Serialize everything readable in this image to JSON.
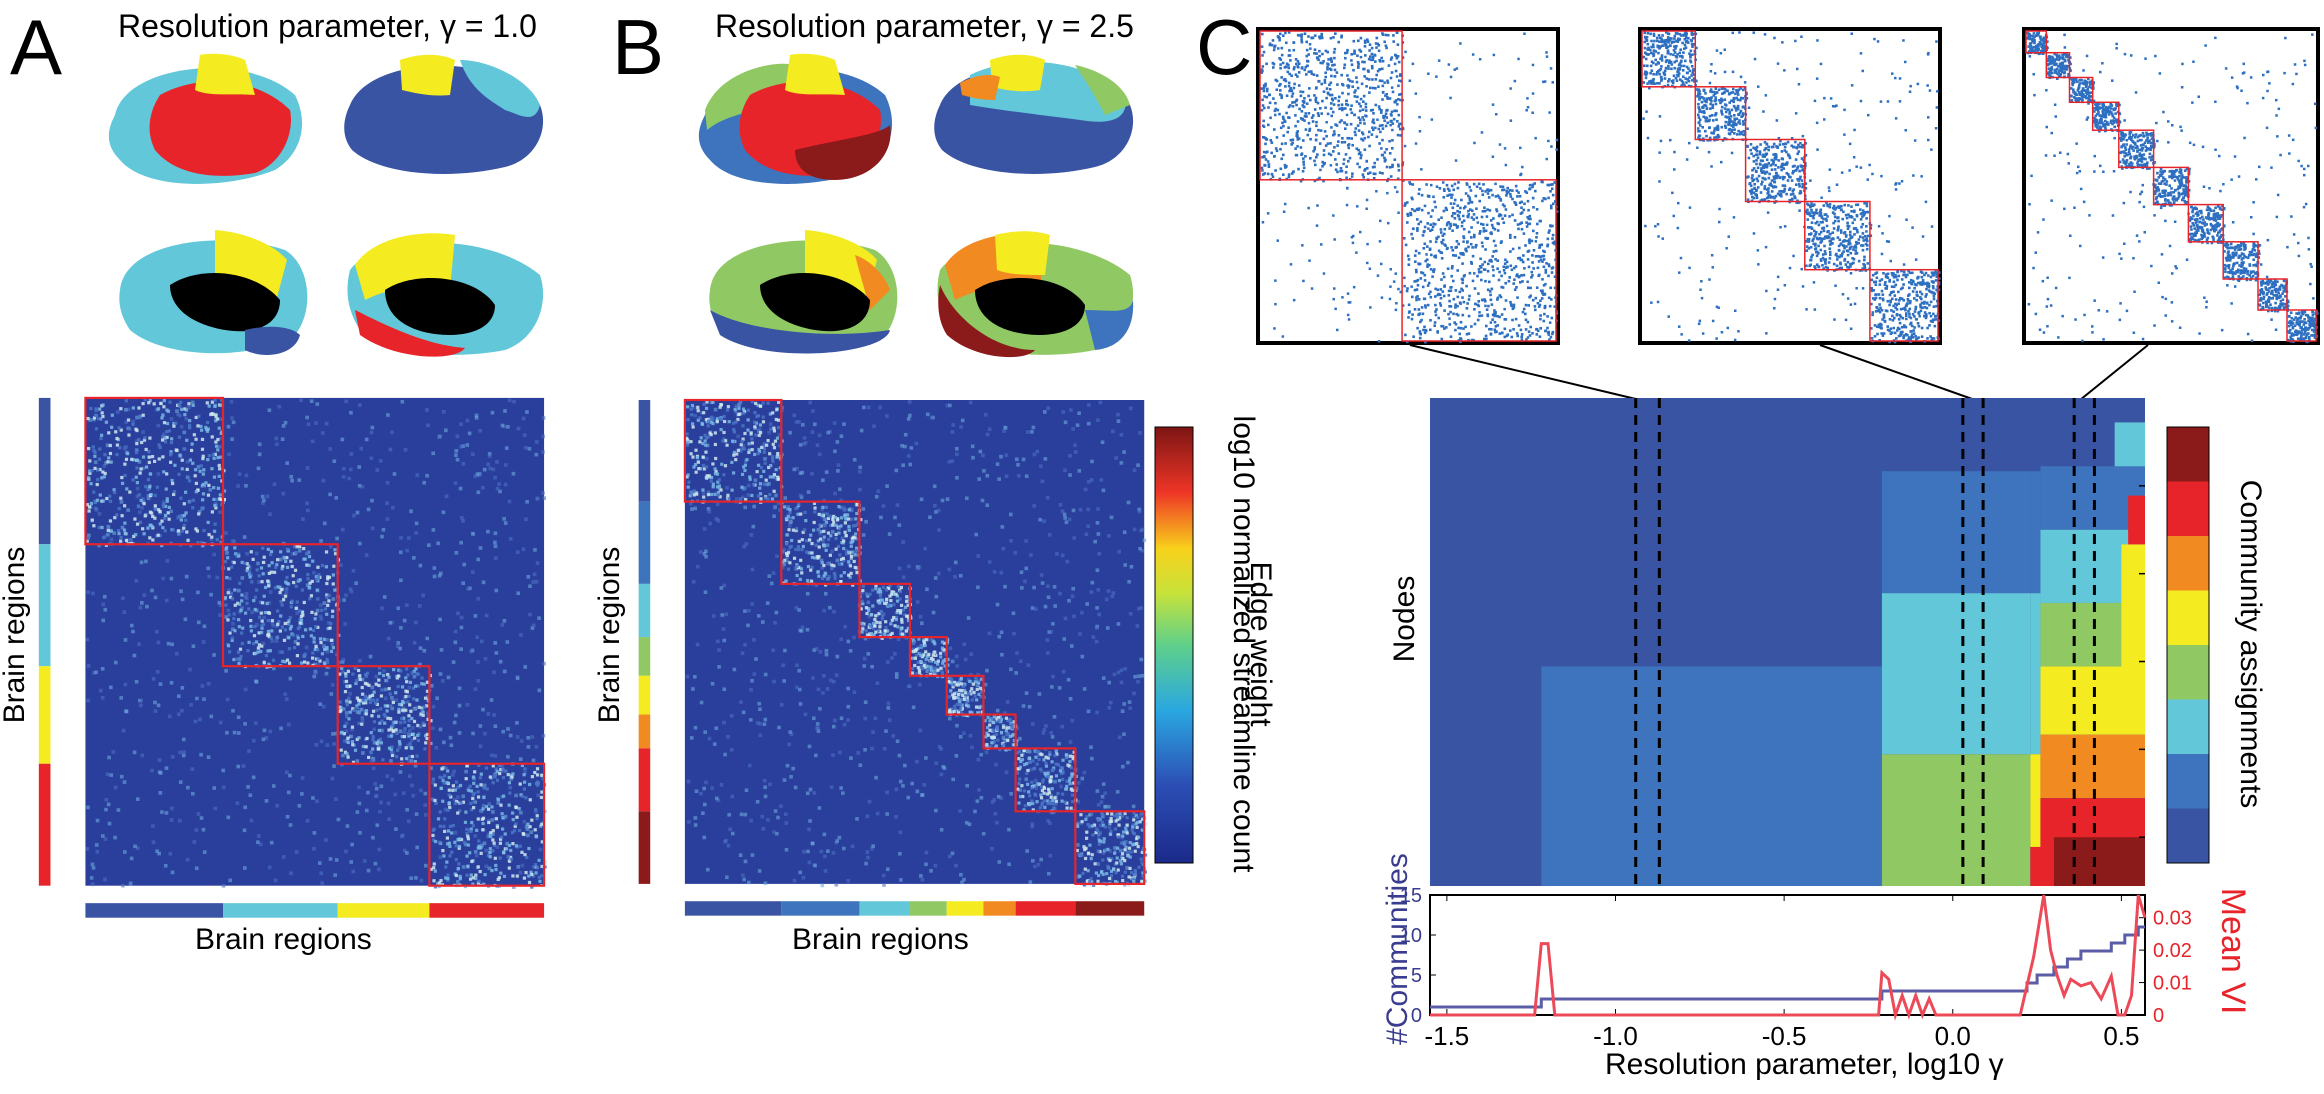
{
  "panels": {
    "A": {
      "label": "A",
      "title": "Resolution parameter, γ = 1.0",
      "ylabel": "Brain regions",
      "xlabel": "Brain regions",
      "community_colors": [
        "#3a54a4",
        "#62c7d8",
        "#f4eb20",
        "#e8242b"
      ],
      "community_fractions": [
        0.3,
        0.25,
        0.2,
        0.25
      ]
    },
    "B": {
      "label": "B",
      "title": "Resolution parameter, γ = 2.5",
      "ylabel": "Brain regions",
      "xlabel": "Brain regions",
      "colorbar_label_line1": "Edge weight",
      "colorbar_label_line2": "log10 normalized streamline count",
      "community_colors": [
        "#3a54a4",
        "#3d74bd",
        "#62c7d8",
        "#90c864",
        "#f4eb20",
        "#f28a22",
        "#e8242b",
        "#8b1a1a"
      ],
      "community_fractions": [
        0.21,
        0.17,
        0.11,
        0.08,
        0.08,
        0.07,
        0.13,
        0.15
      ]
    },
    "C": {
      "label": "C",
      "heatmap_ylabel": "Nodes",
      "colorbar_label": "Community assignments",
      "colorbar_colors": [
        "#3a54a4",
        "#3d74bd",
        "#62c7d8",
        "#90c864",
        "#f4eb20",
        "#f28a22",
        "#e8242b",
        "#8b1a1a"
      ],
      "line_ylabel_left": "#Communities",
      "line_ylabel_right": "Mean VI",
      "xlabel": "Resolution parameter, log10 γ"
    }
  },
  "chart_data": {
    "type": "line",
    "title": "",
    "xlabel": "Resolution parameter, log10 γ",
    "xlim": [
      -1.55,
      0.57
    ],
    "xticks": [
      "-1.5",
      "-1.0",
      "-0.5",
      "0.0",
      "0.5"
    ],
    "left_axis": {
      "label": "#Communities",
      "ylim": [
        0,
        15
      ],
      "ticks": [
        "0",
        "5",
        "10",
        "15"
      ]
    },
    "right_axis": {
      "label": "Mean VI",
      "ylim": [
        0,
        0.037
      ],
      "ticks": [
        "0",
        "0.01",
        "0.02",
        "0.03"
      ]
    },
    "series": [
      {
        "name": "#Communities",
        "color": "#5b5ea6",
        "x": [
          -1.55,
          -1.22,
          -1.22,
          -0.21,
          -0.21,
          0.22,
          0.22,
          0.25,
          0.25,
          0.3,
          0.3,
          0.34,
          0.34,
          0.38,
          0.38,
          0.47,
          0.47,
          0.51,
          0.51,
          0.55,
          0.55,
          0.57
        ],
        "y": [
          1,
          1,
          2,
          2,
          3,
          3,
          4,
          4,
          5,
          5,
          6,
          6,
          7,
          7,
          8,
          8,
          9,
          9,
          10,
          10,
          11,
          11
        ]
      },
      {
        "name": "Mean VI",
        "color": "#ec4a58",
        "x": [
          -1.55,
          -1.24,
          -1.22,
          -1.2,
          -1.18,
          -0.22,
          -0.21,
          -0.19,
          -0.17,
          -0.15,
          -0.13,
          -0.11,
          -0.09,
          -0.07,
          -0.05,
          0.0,
          0.2,
          0.24,
          0.27,
          0.29,
          0.31,
          0.33,
          0.35,
          0.38,
          0.41,
          0.44,
          0.47,
          0.49,
          0.51,
          0.53,
          0.55,
          0.57
        ],
        "y": [
          0,
          0,
          0.022,
          0.022,
          0,
          0,
          0.013,
          0.011,
          0.0,
          0.006,
          0.0,
          0.006,
          0.0,
          0.005,
          0.0,
          0,
          0,
          0.018,
          0.037,
          0.02,
          0.012,
          0.006,
          0.011,
          0.009,
          0.01,
          0.005,
          0.012,
          0.0,
          0.0,
          0.006,
          0.037,
          0.03
        ]
      }
    ]
  }
}
